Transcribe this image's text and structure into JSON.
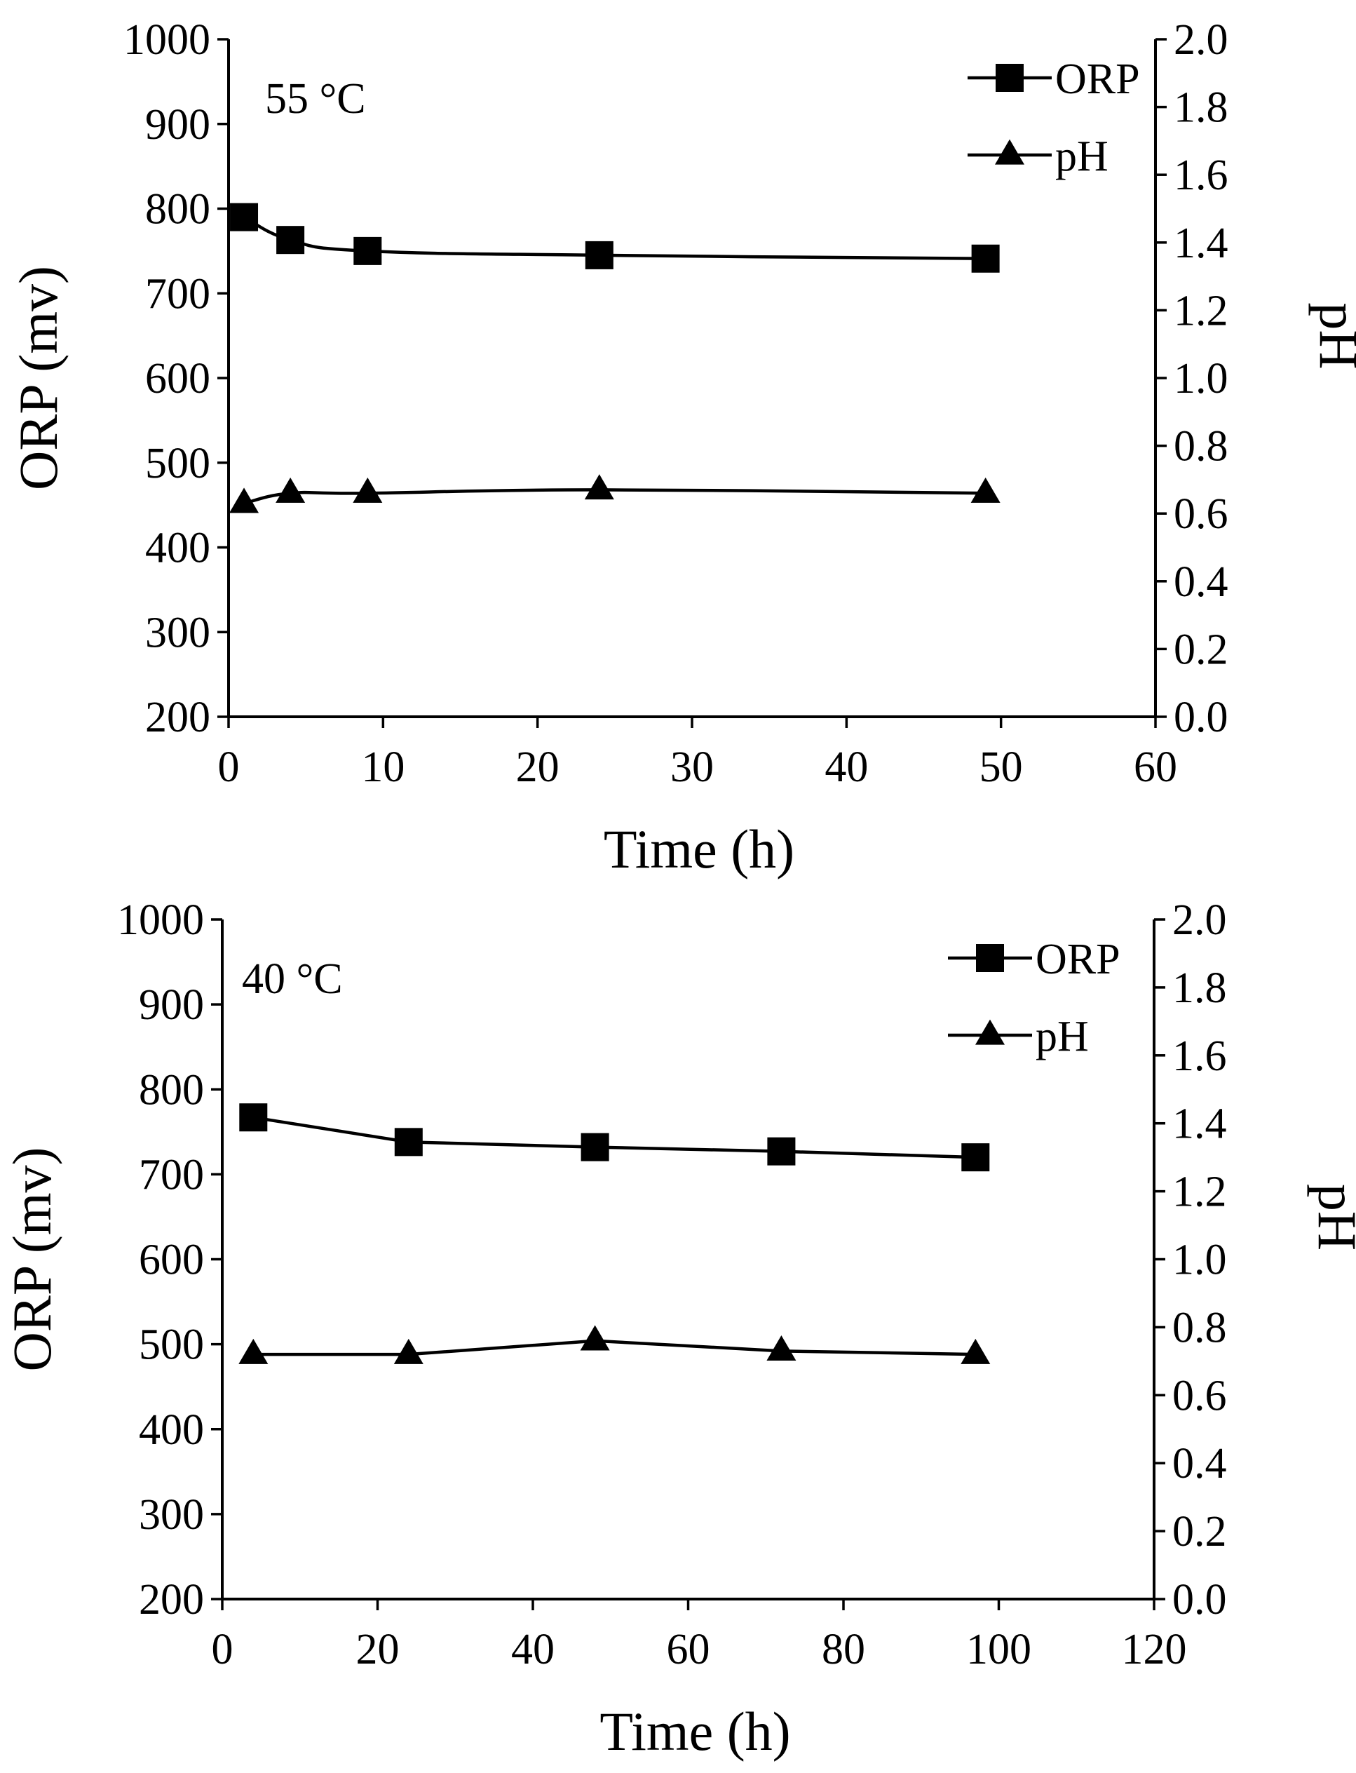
{
  "chart_data": [
    {
      "type": "line",
      "annotation": "55 °C",
      "xlabel": "Time (h)",
      "ylabel": "ORP (mv)",
      "y2label": "pH",
      "xlim": [
        0,
        60
      ],
      "ylim": [
        200,
        1000
      ],
      "y2lim": [
        0.0,
        2.0
      ],
      "xticks": [
        "0",
        "10",
        "20",
        "30",
        "40",
        "50",
        "60"
      ],
      "yticks": [
        "200",
        "300",
        "400",
        "500",
        "600",
        "700",
        "800",
        "900",
        "1000"
      ],
      "y2ticks": [
        "0.0",
        "0.2",
        "0.4",
        "0.6",
        "0.8",
        "1.0",
        "1.2",
        "1.4",
        "1.6",
        "1.8",
        "2.0"
      ],
      "legend_position": "top-right",
      "smooth": true,
      "series": [
        {
          "name": "ORP",
          "axis": "left",
          "marker": "square",
          "x": [
            1,
            4,
            9,
            24,
            49
          ],
          "values": [
            790,
            763,
            750,
            745,
            741
          ]
        },
        {
          "name": "pH",
          "axis": "right",
          "marker": "triangle",
          "x": [
            1,
            4,
            9,
            24,
            49
          ],
          "values": [
            0.63,
            0.66,
            0.66,
            0.67,
            0.66
          ]
        }
      ]
    },
    {
      "type": "line",
      "annotation": "40 °C",
      "xlabel": "Time (h)",
      "ylabel": "ORP (mv)",
      "y2label": "pH",
      "xlim": [
        0,
        120
      ],
      "ylim": [
        200,
        1000
      ],
      "y2lim": [
        0.0,
        2.0
      ],
      "xticks": [
        "0",
        "20",
        "40",
        "60",
        "80",
        "100",
        "120"
      ],
      "yticks": [
        "200",
        "300",
        "400",
        "500",
        "600",
        "700",
        "800",
        "900",
        "1000"
      ],
      "y2ticks": [
        "0.0",
        "0.2",
        "0.4",
        "0.6",
        "0.8",
        "1.0",
        "1.2",
        "1.4",
        "1.6",
        "1.8",
        "2.0"
      ],
      "legend_position": "top-right",
      "smooth": false,
      "series": [
        {
          "name": "ORP",
          "axis": "left",
          "marker": "square",
          "x": [
            4,
            24,
            48,
            72,
            97
          ],
          "values": [
            767,
            738,
            732,
            727,
            720
          ]
        },
        {
          "name": "pH",
          "axis": "right",
          "marker": "triangle",
          "x": [
            4,
            24,
            48,
            72,
            97
          ],
          "values": [
            0.72,
            0.72,
            0.76,
            0.73,
            0.72
          ]
        }
      ]
    }
  ]
}
